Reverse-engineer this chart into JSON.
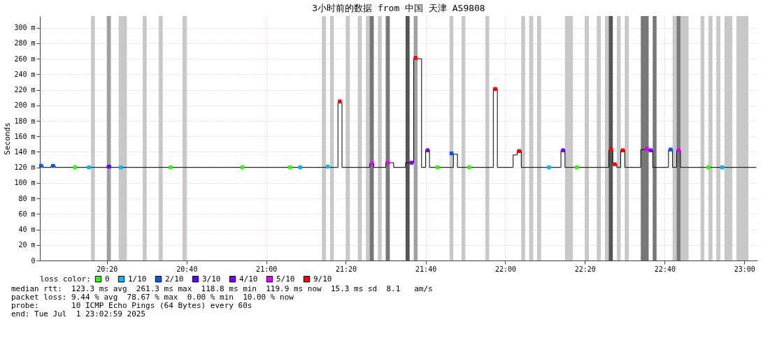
{
  "chart_data": {
    "type": "scatter",
    "title": "3小时前的数据 from 中国 天津 AS9808",
    "ylabel": "Seconds",
    "legend_title": "loss color:",
    "legend": "bottom",
    "grid": true,
    "marker": "square",
    "xlim": [
      20.053,
      23.055
    ],
    "xticks": [
      {
        "value": 20.333,
        "label": "20:20"
      },
      {
        "value": 20.667,
        "label": "20:40"
      },
      {
        "value": 21,
        "label": "21:00"
      },
      {
        "value": 21.333,
        "label": "21:20"
      },
      {
        "value": 21.667,
        "label": "21:40"
      },
      {
        "value": 22,
        "label": "22:00"
      },
      {
        "value": 22.333,
        "label": "22:20"
      },
      {
        "value": 22.667,
        "label": "22:40"
      },
      {
        "value": 23,
        "label": "23:00"
      }
    ],
    "ylim": [
      0,
      315
    ],
    "yticks": [
      0,
      {
        "value": 20,
        "label": "20 m"
      },
      {
        "value": 40,
        "label": "40 m"
      },
      {
        "value": 60,
        "label": "60 m"
      },
      {
        "value": 80,
        "label": "80 m"
      },
      {
        "value": 100,
        "label": "100 m"
      },
      {
        "value": 120,
        "label": "120 m"
      },
      {
        "value": 140,
        "label": "140 m"
      },
      {
        "value": 160,
        "label": "160 m"
      },
      {
        "value": 180,
        "label": "180 m"
      },
      {
        "value": 200,
        "label": "200 m"
      },
      {
        "value": 220,
        "label": "220 m"
      },
      {
        "value": 240,
        "label": "240 m"
      },
      {
        "value": 260,
        "label": "260 m"
      },
      {
        "value": 280,
        "label": "280 m"
      },
      {
        "value": 300,
        "label": "300 m"
      }
    ],
    "bands": [
      {
        "axis": "x",
        "from": 20.267,
        "to": 20.283,
        "color": "#c8c8c8"
      },
      {
        "axis": "x",
        "from": 20.333,
        "to": 20.35,
        "color": "#a0a0a0"
      },
      {
        "axis": "x",
        "from": 20.383,
        "to": 20.417,
        "color": "#c8c8c8"
      },
      {
        "axis": "x",
        "from": 20.483,
        "to": 20.5,
        "color": "#c8c8c8"
      },
      {
        "axis": "x",
        "from": 20.55,
        "to": 20.567,
        "color": "#c8c8c8"
      },
      {
        "axis": "x",
        "from": 20.65,
        "to": 20.667,
        "color": "#c8c8c8"
      },
      {
        "axis": "x",
        "from": 21.233,
        "to": 21.25,
        "color": "#c8c8c8"
      },
      {
        "axis": "x",
        "from": 21.267,
        "to": 21.283,
        "color": "#c8c8c8"
      },
      {
        "axis": "x",
        "from": 21.333,
        "to": 21.35,
        "color": "#c8c8c8"
      },
      {
        "axis": "x",
        "from": 21.383,
        "to": 21.4,
        "color": "#c8c8c8"
      },
      {
        "axis": "x",
        "from": 21.417,
        "to": 21.433,
        "color": "#c8c8c8"
      },
      {
        "axis": "x",
        "from": 21.433,
        "to": 21.45,
        "color": "#777777"
      },
      {
        "axis": "x",
        "from": 21.467,
        "to": 21.483,
        "color": "#c8c8c8"
      },
      {
        "axis": "x",
        "from": 21.5,
        "to": 21.517,
        "color": "#777777"
      },
      {
        "axis": "x",
        "from": 21.583,
        "to": 21.6,
        "color": "#555555"
      },
      {
        "axis": "x",
        "from": 21.617,
        "to": 21.633,
        "color": "#a0a0a0"
      },
      {
        "axis": "x",
        "from": 21.767,
        "to": 21.783,
        "color": "#c8c8c8"
      },
      {
        "axis": "x",
        "from": 21.817,
        "to": 21.833,
        "color": "#c8c8c8"
      },
      {
        "axis": "x",
        "from": 21.917,
        "to": 21.933,
        "color": "#c8c8c8"
      },
      {
        "axis": "x",
        "from": 22.067,
        "to": 22.083,
        "color": "#c8c8c8"
      },
      {
        "axis": "x",
        "from": 22.1,
        "to": 22.117,
        "color": "#c8c8c8"
      },
      {
        "axis": "x",
        "from": 22.133,
        "to": 22.15,
        "color": "#c8c8c8"
      },
      {
        "axis": "x",
        "from": 22.25,
        "to": 22.283,
        "color": "#c8c8c8"
      },
      {
        "axis": "x",
        "from": 22.333,
        "to": 22.35,
        "color": "#c8c8c8"
      },
      {
        "axis": "x",
        "from": 22.383,
        "to": 22.4,
        "color": "#c8c8c8"
      },
      {
        "axis": "x",
        "from": 22.417,
        "to": 22.433,
        "color": "#c8c8c8"
      },
      {
        "axis": "x",
        "from": 22.433,
        "to": 22.45,
        "color": "#555555"
      },
      {
        "axis": "x",
        "from": 22.467,
        "to": 22.483,
        "color": "#c8c8c8"
      },
      {
        "axis": "x",
        "from": 22.5,
        "to": 22.517,
        "color": "#c8c8c8"
      },
      {
        "axis": "x",
        "from": 22.567,
        "to": 22.6,
        "color": "#777777"
      },
      {
        "axis": "x",
        "from": 22.617,
        "to": 22.633,
        "color": "#777777"
      },
      {
        "axis": "x",
        "from": 22.7,
        "to": 22.717,
        "color": "#c8c8c8"
      },
      {
        "axis": "x",
        "from": 22.717,
        "to": 22.733,
        "color": "#777777"
      },
      {
        "axis": "x",
        "from": 22.733,
        "to": 22.767,
        "color": "#c8c8c8"
      },
      {
        "axis": "x",
        "from": 22.817,
        "to": 22.833,
        "color": "#c8c8c8"
      },
      {
        "axis": "x",
        "from": 22.85,
        "to": 22.867,
        "color": "#c8c8c8"
      },
      {
        "axis": "x",
        "from": 22.883,
        "to": 22.9,
        "color": "#c8c8c8"
      },
      {
        "axis": "x",
        "from": 22.917,
        "to": 22.95,
        "color": "#c8c8c8"
      },
      {
        "axis": "x",
        "from": 22.967,
        "to": 23.017,
        "color": "#c8c8c8"
      }
    ],
    "series": [
      {
        "type": "step",
        "marker": "none",
        "color": "#000000",
        "x": [
          20.053,
          20.067,
          20.1,
          20.117,
          20.333,
          20.35,
          21.3,
          21.317,
          21.433,
          21.45,
          21.5,
          21.533,
          21.583,
          21.617,
          21.65,
          21.667,
          21.683,
          21.783,
          21.8,
          21.95,
          21.967,
          22.033,
          22.05,
          22.067,
          22.233,
          22.25,
          22.433,
          22.45,
          22.467,
          22.483,
          22.5,
          22.567,
          22.6,
          22.617,
          22.683,
          22.7,
          22.717,
          22.733,
          23.05
        ],
        "values": [
          122,
          120,
          122,
          120,
          121,
          120,
          203,
          120,
          125,
          120,
          126,
          120,
          126,
          260,
          120,
          142,
          120,
          137,
          120,
          221,
          120,
          136,
          141,
          120,
          142,
          120,
          142,
          124,
          120,
          142,
          120,
          143,
          142,
          120,
          143,
          120,
          142,
          120,
          120
        ]
      },
      {
        "name": "0",
        "color": "#26ff00",
        "x": [
          20.2,
          20.6,
          20.9,
          21.1,
          21.717,
          21.85,
          22.3,
          22.85
        ],
        "values": [
          120,
          120,
          120,
          120,
          120,
          120,
          120,
          120
        ]
      },
      {
        "name": "1/10",
        "color": "#00b8ff",
        "x": [
          20.258,
          20.392,
          21.142,
          21.258,
          22.183,
          22.908
        ],
        "values": [
          120,
          120,
          120,
          121,
          120,
          120
        ]
      },
      {
        "name": "2/10",
        "color": "#0059ff",
        "x": [
          20.058,
          20.108,
          21.775,
          22.692
        ],
        "values": [
          122,
          122,
          138,
          143
        ]
      },
      {
        "name": "3/10",
        "color": "#5e00ff",
        "x": [
          20.342
        ],
        "values": [
          121
        ]
      },
      {
        "name": "4/10",
        "color": "#7e00ff",
        "x": [
          21.608,
          21.675,
          22.242,
          22.608
        ],
        "values": [
          126,
          142,
          142,
          142
        ]
      },
      {
        "name": "5/10",
        "color": "#dd00ff",
        "x": [
          21.442,
          21.508,
          22.592,
          22.725
        ],
        "values": [
          125,
          126,
          144,
          142
        ]
      },
      {
        "name": "9/10",
        "color": "#ff0000",
        "x": [
          21.308,
          21.625,
          21.958,
          22.058,
          22.442,
          22.458,
          22.492
        ],
        "values": [
          205,
          261,
          221,
          141,
          143,
          124,
          142
        ]
      }
    ],
    "annotations": [
      "median rtt:  123.3 ms avg  261.3 ms max  118.8 ms min  119.9 ms now  15.3 ms sd  8.1   am/s",
      "packet loss: 9.44 % avg  78.67 % max  0.00 % min  10.00 % now",
      "probe:       10 ICMP Echo Pings (64 Bytes) every 60s",
      "end: Tue Jul  1 23:02:59 2025"
    ]
  }
}
